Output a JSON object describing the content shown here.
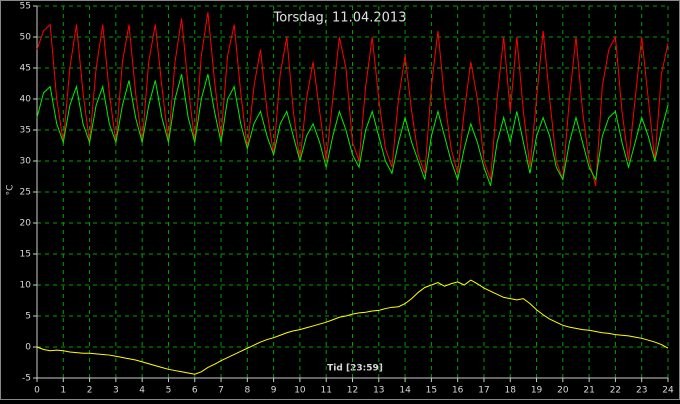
{
  "chart_data": {
    "type": "line",
    "title": "Torsdag, 11.04.2013",
    "ylabel": "°C",
    "xlabel": "Tid [23:59]",
    "x": [
      0,
      0.25,
      0.5,
      0.75,
      1,
      1.25,
      1.5,
      1.75,
      2,
      2.25,
      2.5,
      2.75,
      3,
      3.25,
      3.5,
      3.75,
      4,
      4.25,
      4.5,
      4.75,
      5,
      5.25,
      5.5,
      5.75,
      6,
      6.25,
      6.5,
      6.75,
      7,
      7.25,
      7.5,
      7.75,
      8,
      8.25,
      8.5,
      8.75,
      9,
      9.25,
      9.5,
      9.75,
      10,
      10.25,
      10.5,
      10.75,
      11,
      11.25,
      11.5,
      11.75,
      12,
      12.25,
      12.5,
      12.75,
      13,
      13.25,
      13.5,
      13.75,
      14,
      14.25,
      14.5,
      14.75,
      15,
      15.25,
      15.5,
      15.75,
      16,
      16.25,
      16.5,
      16.75,
      17,
      17.25,
      17.5,
      17.75,
      18,
      18.25,
      18.5,
      18.75,
      19,
      19.25,
      19.5,
      19.75,
      20,
      20.25,
      20.5,
      20.75,
      21,
      21.25,
      21.5,
      21.75,
      22,
      22.25,
      22.5,
      22.75,
      23,
      23.25,
      23.5,
      23.75,
      24
    ],
    "series": [
      {
        "color": "#ff0000",
        "values": [
          48,
          51,
          52,
          40,
          33,
          45,
          52,
          41,
          33,
          45,
          52,
          41,
          33,
          46,
          52,
          41,
          33,
          46,
          52,
          42,
          33,
          46,
          53,
          42,
          33,
          47,
          54,
          43,
          34,
          47,
          52,
          41,
          32,
          42,
          48,
          38,
          31,
          44,
          50,
          38,
          30,
          40,
          46,
          38,
          30,
          40,
          50,
          45,
          33,
          30,
          42,
          50,
          40,
          32,
          29,
          40,
          47,
          38,
          31,
          28,
          42,
          51,
          40,
          32,
          28,
          38,
          46,
          40,
          30,
          27,
          40,
          50,
          38,
          50,
          38,
          29,
          40,
          51,
          40,
          30,
          27,
          40,
          50,
          38,
          30,
          26,
          42,
          48,
          50,
          38,
          30,
          40,
          50,
          40,
          30,
          44,
          49
        ]
      },
      {
        "color": "#00ee00",
        "values": [
          37,
          41,
          42,
          36,
          33,
          39,
          42,
          36,
          33,
          39,
          42,
          36,
          33,
          39,
          43,
          37,
          33,
          39,
          43,
          37,
          33,
          40,
          44,
          37,
          33,
          40,
          44,
          38,
          33,
          40,
          42,
          36,
          32,
          36,
          38,
          34,
          31,
          36,
          38,
          34,
          30,
          34,
          36,
          33,
          29,
          34,
          38,
          35,
          31,
          29,
          35,
          38,
          34,
          30,
          28,
          33,
          37,
          33,
          30,
          27,
          34,
          38,
          34,
          30,
          27,
          32,
          36,
          33,
          29,
          26,
          33,
          37,
          33,
          38,
          33,
          28,
          34,
          37,
          34,
          29,
          27,
          33,
          37,
          33,
          29,
          27,
          34,
          37,
          38,
          33,
          29,
          33,
          37,
          34,
          30,
          35,
          39
        ]
      },
      {
        "color": "#ffff00",
        "values": [
          0,
          -0.4,
          -0.6,
          -0.5,
          -0.6,
          -0.8,
          -0.9,
          -1,
          -1,
          -1.1,
          -1.2,
          -1.3,
          -1.5,
          -1.7,
          -1.9,
          -2.1,
          -2.4,
          -2.7,
          -3,
          -3.3,
          -3.6,
          -3.8,
          -4,
          -4.2,
          -4.4,
          -4,
          -3.3,
          -2.8,
          -2.2,
          -1.7,
          -1.2,
          -0.7,
          -0.2,
          0.3,
          0.8,
          1.2,
          1.5,
          1.9,
          2.3,
          2.6,
          2.8,
          3.1,
          3.4,
          3.7,
          4,
          4.4,
          4.8,
          5,
          5.3,
          5.5,
          5.6,
          5.8,
          5.9,
          6.2,
          6.4,
          6.5,
          7,
          7.8,
          8.8,
          9.6,
          10,
          10.4,
          9.8,
          10.2,
          10.5,
          10,
          10.8,
          10.2,
          9.5,
          9,
          8.5,
          8,
          7.8,
          7.6,
          7.8,
          7,
          6,
          5.2,
          4.5,
          4,
          3.5,
          3.2,
          3,
          2.8,
          2.7,
          2.5,
          2.3,
          2.2,
          2,
          1.9,
          1.8,
          1.6,
          1.4,
          1.1,
          0.8,
          0.4,
          -0.2
        ]
      }
    ],
    "xlim": [
      0,
      24
    ],
    "xticks": [
      0,
      1,
      2,
      3,
      4,
      5,
      6,
      7,
      8,
      9,
      10,
      11,
      12,
      13,
      14,
      15,
      16,
      17,
      18,
      19,
      20,
      21,
      22,
      23,
      24
    ],
    "ylim": [
      -5,
      55
    ],
    "yticks": [
      -5,
      0,
      5,
      10,
      15,
      20,
      25,
      30,
      35,
      40,
      45,
      50,
      55
    ],
    "grid": true,
    "grid_color": "#00a000"
  }
}
